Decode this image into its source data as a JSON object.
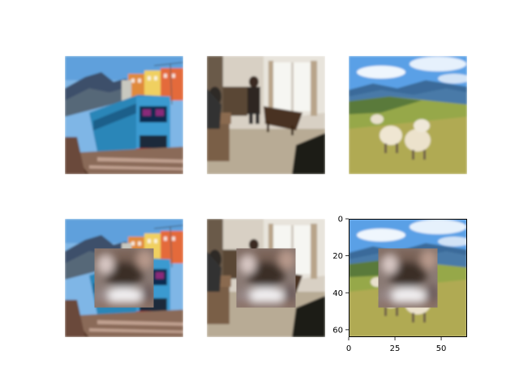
{
  "chart_data": {
    "type": "image-grid",
    "rows": 2,
    "cols": 3,
    "images": [
      {
        "row": 0,
        "col": 0,
        "content": "blue passenger train on tracks with colorful buildings and mountains",
        "occluded": false
      },
      {
        "row": 0,
        "col": 1,
        "content": "person standing in a living room with window and furniture",
        "occluded": false
      },
      {
        "row": 0,
        "col": 2,
        "content": "sheep grazing on a grassy hillside with mountains and blue sky",
        "occluded": false
      },
      {
        "row": 1,
        "col": 0,
        "content": "train image with blurred square patch",
        "occluded": true
      },
      {
        "row": 1,
        "col": 1,
        "content": "living room image with blurred square patch",
        "occluded": true
      },
      {
        "row": 1,
        "col": 2,
        "content": "sheep image with blurred square patch",
        "occluded": true
      }
    ],
    "patch_region_pixels": {
      "x": [
        16,
        48
      ],
      "y": [
        16,
        48
      ]
    },
    "last_axes": {
      "xlim": [
        0,
        64
      ],
      "ylim": [
        64,
        0
      ],
      "x_ticks": [
        0,
        25,
        50
      ],
      "y_ticks": [
        0,
        20,
        40,
        60
      ],
      "x_tick_labels": [
        "0",
        "25",
        "50"
      ],
      "y_tick_labels": [
        "0",
        "20",
        "40",
        "60"
      ]
    }
  },
  "colors": {
    "sky": "#6aa8de",
    "train_blue": "#2a86b8",
    "grass": "#9aa84a",
    "patch_dark": "#4a3a30"
  }
}
